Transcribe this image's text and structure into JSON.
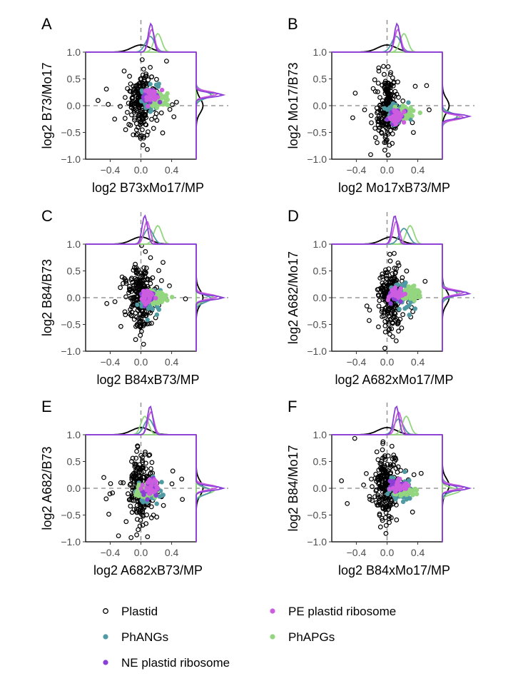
{
  "colors": {
    "Plastid": "#000000",
    "PhANGs": "#4f9aa3",
    "NE plastid ribosome": "#8b3fd6",
    "PE plastid ribosome": "#cc5de0",
    "PhAPGs": "#93d67f",
    "reference_line": "#999999"
  },
  "legend": [
    {
      "name": "Plastid",
      "style": "open"
    },
    {
      "name": "PE plastid ribosome",
      "style": "filled"
    },
    {
      "name": "PhANGs",
      "style": "filled"
    },
    {
      "name": "PhAPGs",
      "style": "filled"
    },
    {
      "name": "NE plastid ribosome",
      "style": "filled"
    }
  ],
  "chart_data": [
    {
      "type": "scatter",
      "panel": "A",
      "xlabel": "log2 B73xMo17/MP",
      "ylabel": "log2 B73/Mo17",
      "xlim": [
        -0.72,
        0.72
      ],
      "ylim": [
        -1.0,
        1.0
      ],
      "xticks": [
        "−0.4",
        "0.0",
        "0.4"
      ],
      "yticks": [
        "1.0",
        "0.5",
        "0.0",
        "−0.5",
        "−1.0"
      ],
      "hlines": [
        0
      ],
      "vlines": [
        0
      ],
      "group_centers": {
        "Plastid": [
          0.0,
          0.05
        ],
        "PhANGs": [
          0.13,
          0.15
        ],
        "NE plastid ribosome": [
          0.12,
          0.18
        ],
        "PE plastid ribosome": [
          0.15,
          0.2
        ],
        "PhAPGs": [
          0.22,
          0.12
        ]
      },
      "marginal_density_modes": {
        "x": {
          "Plastid": 0.0,
          "PhANGs": 0.12,
          "NE plastid ribosome": 0.13,
          "PE plastid ribosome": 0.14,
          "PhAPGs": 0.22
        },
        "y": {
          "Plastid": 0.0,
          "PhANGs": 0.2,
          "NE plastid ribosome": 0.2,
          "PE plastid ribosome": 0.22,
          "PhAPGs": 0.2
        }
      }
    },
    {
      "type": "scatter",
      "panel": "B",
      "xlabel": "log2 Mo17xB73/MP",
      "ylabel": "log2 Mo17/B73",
      "xlim": [
        -0.72,
        0.72
      ],
      "ylim": [
        -1.0,
        1.0
      ],
      "xticks": [
        "−0.4",
        "0.0",
        "0.4"
      ],
      "yticks": [
        "1.0",
        "0.5",
        "0.0",
        "−0.5",
        "−1.0"
      ],
      "hlines": [
        0
      ],
      "vlines": [
        0
      ],
      "group_centers": {
        "Plastid": [
          0.0,
          -0.05
        ],
        "PhANGs": [
          0.12,
          -0.15
        ],
        "NE plastid ribosome": [
          0.12,
          -0.2
        ],
        "PE plastid ribosome": [
          0.14,
          -0.2
        ],
        "PhAPGs": [
          0.22,
          -0.12
        ]
      },
      "marginal_density_modes": {
        "x": {
          "Plastid": 0.0,
          "PhANGs": 0.12,
          "NE plastid ribosome": 0.13,
          "PE plastid ribosome": 0.14,
          "PhAPGs": 0.22
        },
        "y": {
          "Plastid": 0.0,
          "PhANGs": -0.2,
          "NE plastid ribosome": -0.2,
          "PE plastid ribosome": -0.22,
          "PhAPGs": -0.2
        }
      }
    },
    {
      "type": "scatter",
      "panel": "C",
      "xlabel": "log2 B84xB73/MP",
      "ylabel": "log2 B84/B73",
      "xlim": [
        -0.72,
        0.72
      ],
      "ylim": [
        -1.0,
        1.0
      ],
      "xticks": [
        "−0.4",
        "0.0",
        "0.4"
      ],
      "yticks": [
        "1.0",
        "0.5",
        "0.0",
        "−0.5",
        "−1.0"
      ],
      "hlines": [
        0
      ],
      "vlines": [
        0
      ],
      "group_centers": {
        "Plastid": [
          0.0,
          0.0
        ],
        "PhANGs": [
          0.12,
          -0.02
        ],
        "NE plastid ribosome": [
          0.07,
          0.0
        ],
        "PE plastid ribosome": [
          0.08,
          0.02
        ],
        "PhAPGs": [
          0.22,
          0.0
        ]
      },
      "marginal_density_modes": {
        "x": {
          "Plastid": 0.0,
          "PhANGs": 0.1,
          "NE plastid ribosome": 0.05,
          "PE plastid ribosome": 0.08,
          "PhAPGs": 0.22
        },
        "y": {
          "Plastid": 0.0,
          "PhANGs": -0.02,
          "NE plastid ribosome": 0.0,
          "PE plastid ribosome": 0.02,
          "PhAPGs": 0.0
        }
      }
    },
    {
      "type": "scatter",
      "panel": "D",
      "xlabel": "log2 A682xMo17/MP",
      "ylabel": "log2 A682/Mo17",
      "xlim": [
        -0.72,
        0.72
      ],
      "ylim": [
        -1.0,
        1.0
      ],
      "xticks": [
        "−0.4",
        "0.0",
        "0.4"
      ],
      "yticks": [
        "1.0",
        "0.5",
        "0.0",
        "−0.5",
        "−1.0"
      ],
      "hlines": [
        0
      ],
      "vlines": [
        0
      ],
      "group_centers": {
        "Plastid": [
          0.05,
          0.0
        ],
        "PhANGs": [
          0.22,
          0.05
        ],
        "NE plastid ribosome": [
          0.1,
          0.05
        ],
        "PE plastid ribosome": [
          0.12,
          0.08
        ],
        "PhAPGs": [
          0.3,
          0.08
        ]
      },
      "marginal_density_modes": {
        "x": {
          "Plastid": 0.05,
          "PhANGs": 0.22,
          "NE plastid ribosome": 0.1,
          "PE plastid ribosome": 0.12,
          "PhAPGs": 0.3
        },
        "y": {
          "Plastid": 0.0,
          "PhANGs": 0.08,
          "NE plastid ribosome": 0.08,
          "PE plastid ribosome": 0.1,
          "PhAPGs": 0.08
        }
      }
    },
    {
      "type": "scatter",
      "panel": "E",
      "xlabel": "log2 A682xB73/MP",
      "ylabel": "log2 A682/B73",
      "xlim": [
        -0.72,
        0.72
      ],
      "ylim": [
        -1.0,
        1.0
      ],
      "xticks": [
        "−0.4",
        "0.0",
        "0.4"
      ],
      "yticks": [
        "1.0",
        "0.5",
        "0.0",
        "−0.5",
        "−1.0"
      ],
      "hlines": [
        0
      ],
      "vlines": [
        0
      ],
      "group_centers": {
        "Plastid": [
          0.0,
          0.0
        ],
        "PhANGs": [
          0.1,
          -0.05
        ],
        "NE plastid ribosome": [
          0.12,
          0.0
        ],
        "PE plastid ribosome": [
          0.12,
          0.02
        ],
        "PhAPGs": [
          0.05,
          -0.05
        ]
      },
      "marginal_density_modes": {
        "x": {
          "Plastid": 0.0,
          "PhANGs": 0.1,
          "NE plastid ribosome": 0.12,
          "PE plastid ribosome": 0.13,
          "PhAPGs": 0.05
        },
        "y": {
          "Plastid": 0.0,
          "PhANGs": -0.05,
          "NE plastid ribosome": 0.0,
          "PE plastid ribosome": 0.02,
          "PhAPGs": -0.05
        }
      }
    },
    {
      "type": "scatter",
      "panel": "F",
      "xlabel": "log2 B84xMo17/MP",
      "ylabel": "log2 B84/Mo17",
      "xlim": [
        -0.72,
        0.72
      ],
      "ylim": [
        -1.0,
        1.0
      ],
      "xticks": [
        "−0.4",
        "0.0",
        "0.4"
      ],
      "yticks": [
        "1.0",
        "0.5",
        "0.0",
        "−0.5",
        "−1.0"
      ],
      "hlines": [
        0
      ],
      "vlines": [
        0
      ],
      "group_centers": {
        "Plastid": [
          0.0,
          0.05
        ],
        "PhANGs": [
          0.15,
          0.0
        ],
        "NE plastid ribosome": [
          0.12,
          0.05
        ],
        "PE plastid ribosome": [
          0.15,
          0.05
        ],
        "PhAPGs": [
          0.25,
          -0.05
        ]
      },
      "marginal_density_modes": {
        "x": {
          "Plastid": 0.0,
          "PhANGs": 0.15,
          "NE plastid ribosome": 0.12,
          "PE plastid ribosome": 0.15,
          "PhAPGs": 0.25
        },
        "y": {
          "Plastid": 0.05,
          "PhANGs": 0.0,
          "NE plastid ribosome": 0.0,
          "PE plastid ribosome": 0.02,
          "PhAPGs": -0.05
        }
      }
    }
  ]
}
